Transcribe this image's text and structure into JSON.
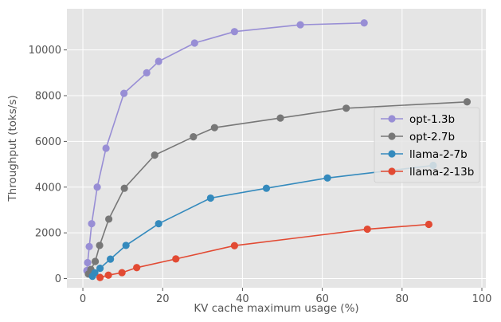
{
  "chart_data": {
    "type": "line",
    "title": "",
    "xlabel": "KV cache maximum usage (%)",
    "ylabel": "Throughput (toks/s)",
    "xlim": [
      -4,
      101
    ],
    "ylim": [
      -400,
      11800
    ],
    "xticks": [
      0,
      20,
      40,
      60,
      80,
      100
    ],
    "yticks": [
      0,
      2000,
      4000,
      6000,
      8000,
      10000
    ],
    "grid": true,
    "legend_position": "center-right",
    "background": "#e5e5e5",
    "series": [
      {
        "name": "opt-1.3b",
        "color": "#988ed5",
        "points": [
          [
            1,
            350
          ],
          [
            1.2,
            700
          ],
          [
            1.6,
            1400
          ],
          [
            2.2,
            2400
          ],
          [
            3.6,
            4000
          ],
          [
            5.8,
            5700
          ],
          [
            10.3,
            8100
          ],
          [
            16,
            9000
          ],
          [
            19,
            9500
          ],
          [
            28,
            10300
          ],
          [
            38,
            10800
          ],
          [
            54.5,
            11100
          ],
          [
            70.5,
            11180
          ]
        ]
      },
      {
        "name": "opt-2.7b",
        "color": "#777777",
        "points": [
          [
            1.4,
            200
          ],
          [
            2,
            400
          ],
          [
            3.1,
            750
          ],
          [
            4.2,
            1450
          ],
          [
            6.5,
            2600
          ],
          [
            10.4,
            3950
          ],
          [
            18,
            5400
          ],
          [
            27.7,
            6200
          ],
          [
            33,
            6600
          ],
          [
            49.5,
            7020
          ],
          [
            66,
            7450
          ],
          [
            96.3,
            7730
          ]
        ]
      },
      {
        "name": "llama-2-7b",
        "color": "#348abd",
        "points": [
          [
            2.4,
            100
          ],
          [
            3,
            250
          ],
          [
            4.3,
            450
          ],
          [
            6.9,
            850
          ],
          [
            10.8,
            1450
          ],
          [
            19,
            2400
          ],
          [
            32,
            3520
          ],
          [
            46,
            3950
          ],
          [
            61.3,
            4400
          ],
          [
            87.8,
            4950
          ]
        ]
      },
      {
        "name": "llama-2-13b",
        "color": "#e24a33",
        "points": [
          [
            4.3,
            50
          ],
          [
            6.4,
            150
          ],
          [
            9.8,
            260
          ],
          [
            13.5,
            480
          ],
          [
            23.3,
            860
          ],
          [
            38,
            1440
          ],
          [
            71.3,
            2160
          ],
          [
            86.7,
            2370
          ]
        ]
      }
    ]
  }
}
